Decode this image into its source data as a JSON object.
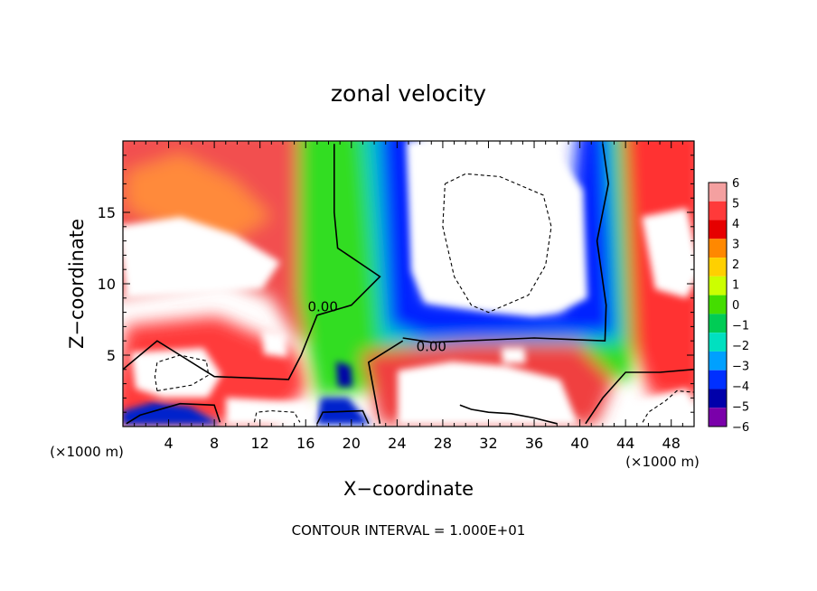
{
  "chart_data": {
    "type": "heatmap",
    "title": "zonal velocity",
    "xlabel": "X−coordinate",
    "ylabel": "Z−coordinate",
    "x_unit_left": "(×1000 m)",
    "x_unit_right": "(×1000 m)",
    "footer": "CONTOUR INTERVAL = 1.000E+01",
    "xlim": [
      0,
      50
    ],
    "ylim": [
      0,
      20
    ],
    "x_ticks": [
      4,
      8,
      12,
      16,
      20,
      24,
      28,
      32,
      36,
      40,
      44,
      48
    ],
    "x_tick_labels": [
      "4",
      "8",
      "12",
      "16",
      "20",
      "24",
      "28",
      "32",
      "36",
      "40",
      "44",
      "48"
    ],
    "y_ticks": [
      5,
      10,
      15
    ],
    "y_tick_labels": [
      "5",
      "10",
      "15"
    ],
    "colorbar": {
      "values": [
        6,
        5,
        4,
        3,
        2,
        1,
        0,
        -1,
        -2,
        -3,
        -4,
        -5,
        -6
      ],
      "labels": [
        "6",
        "5",
        "4",
        "3",
        "2",
        "1",
        "0",
        "−1",
        "−2",
        "−3",
        "−4",
        "−5",
        "−6"
      ],
      "colors": [
        "#f4a0a0",
        "#ff3a3a",
        "#e60000",
        "#ff8800",
        "#ffd000",
        "#ccff00",
        "#44dd00",
        "#00cc55",
        "#00e0c0",
        "#00a0ff",
        "#0030ff",
        "#0000aa",
        "#7a00aa"
      ]
    },
    "contour_labels": [
      {
        "text": "0.00",
        "x": 17.5,
        "y": 8.4
      },
      {
        "text": "0.00",
        "x": 27.0,
        "y": 5.6
      }
    ],
    "contour_lines": [
      {
        "style": "solid",
        "points": [
          [
            18.5,
            19.8
          ],
          [
            18.5,
            15
          ],
          [
            18.8,
            12.5
          ],
          [
            22.5,
            10.5
          ],
          [
            20,
            8.5
          ],
          [
            17,
            7.8
          ],
          [
            15.6,
            5
          ],
          [
            14.5,
            3.3
          ],
          [
            8,
            3.5
          ],
          [
            5,
            5
          ],
          [
            3,
            6
          ],
          [
            0,
            4
          ]
        ]
      },
      {
        "style": "solid",
        "points": [
          [
            24.5,
            6.2
          ],
          [
            27,
            5.9
          ],
          [
            36,
            6.2
          ],
          [
            42.2,
            6.0
          ],
          [
            42.3,
            8.5
          ],
          [
            41.5,
            13
          ],
          [
            42.5,
            17
          ],
          [
            42,
            19.8
          ]
        ]
      },
      {
        "style": "solid",
        "points": [
          [
            24.5,
            6.0
          ],
          [
            21.5,
            4.5
          ],
          [
            22.5,
            0.2
          ]
        ]
      },
      {
        "style": "solid",
        "points": [
          [
            40.5,
            0.2
          ],
          [
            42,
            2
          ],
          [
            44,
            3.8
          ],
          [
            47,
            3.8
          ],
          [
            50,
            4
          ]
        ]
      },
      {
        "style": "solid",
        "points": [
          [
            0.3,
            0.2
          ],
          [
            1.5,
            0.8
          ],
          [
            5,
            1.6
          ],
          [
            8,
            1.5
          ],
          [
            8.5,
            0.3
          ]
        ]
      },
      {
        "style": "solid",
        "points": [
          [
            17,
            0.2
          ],
          [
            17.5,
            1
          ],
          [
            21,
            1.1
          ],
          [
            21.5,
            0.2
          ]
        ]
      },
      {
        "style": "solid",
        "points": [
          [
            29.5,
            1.5
          ],
          [
            30.5,
            1.2
          ],
          [
            32,
            1
          ],
          [
            34,
            0.9
          ],
          [
            36,
            0.6
          ],
          [
            38,
            0.2
          ]
        ]
      },
      {
        "style": "dashed",
        "points": [
          [
            28.2,
            17
          ],
          [
            30,
            17.7
          ],
          [
            33,
            17.5
          ],
          [
            36.8,
            16.2
          ],
          [
            37.5,
            14
          ],
          [
            37,
            11.3
          ],
          [
            35.5,
            9.2
          ],
          [
            32,
            8
          ],
          [
            30.5,
            8.5
          ],
          [
            29,
            10.5
          ],
          [
            28,
            14
          ],
          [
            28.2,
            17
          ]
        ]
      },
      {
        "style": "dashed",
        "points": [
          [
            3,
            2.5
          ],
          [
            6,
            2.9
          ],
          [
            7.5,
            3.6
          ],
          [
            7.3,
            4.6
          ],
          [
            5,
            5
          ],
          [
            3,
            4.5
          ],
          [
            2.8,
            3.5
          ],
          [
            3,
            2.5
          ]
        ]
      },
      {
        "style": "dashed",
        "points": [
          [
            11.5,
            0.3
          ],
          [
            11.7,
            1
          ],
          [
            13,
            1.1
          ],
          [
            15,
            1.0
          ],
          [
            15.5,
            0.3
          ]
        ]
      },
      {
        "style": "dashed",
        "points": [
          [
            45.5,
            0.3
          ],
          [
            46,
            1
          ],
          [
            47.5,
            1.8
          ],
          [
            48.5,
            2.5
          ],
          [
            50,
            2.4
          ]
        ]
      }
    ]
  }
}
